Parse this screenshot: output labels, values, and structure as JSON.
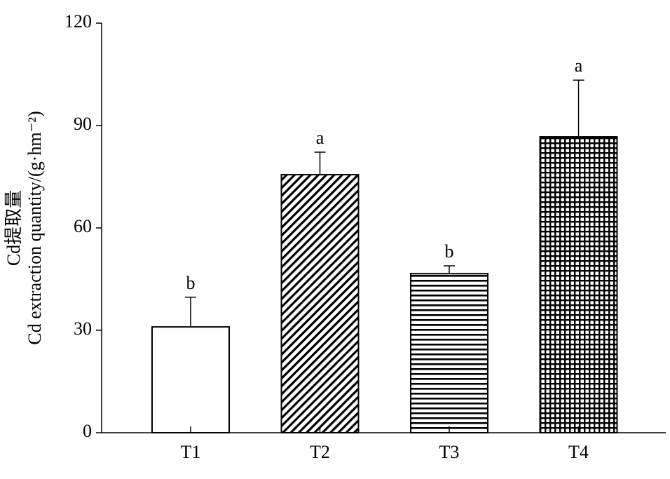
{
  "chart_data": {
    "type": "bar",
    "ylabel": [
      "Cd提取量",
      "Cd extraction quantity/(g·hm⁻²)"
    ],
    "categories": [
      "T1",
      "T2",
      "T3",
      "T4"
    ],
    "values": [
      31,
      75.6,
      46.6,
      86.7
    ],
    "errors": [
      8.7,
      6.6,
      2.3,
      16.6
    ],
    "letters": [
      "b",
      "a",
      "b",
      "a"
    ],
    "patterns": [
      "none",
      "diagonal",
      "horizontal",
      "grid"
    ],
    "color": "#000000",
    "ylim": [
      0,
      120
    ],
    "yticks": [
      0,
      30,
      60,
      90,
      120
    ],
    "grid": false
  }
}
